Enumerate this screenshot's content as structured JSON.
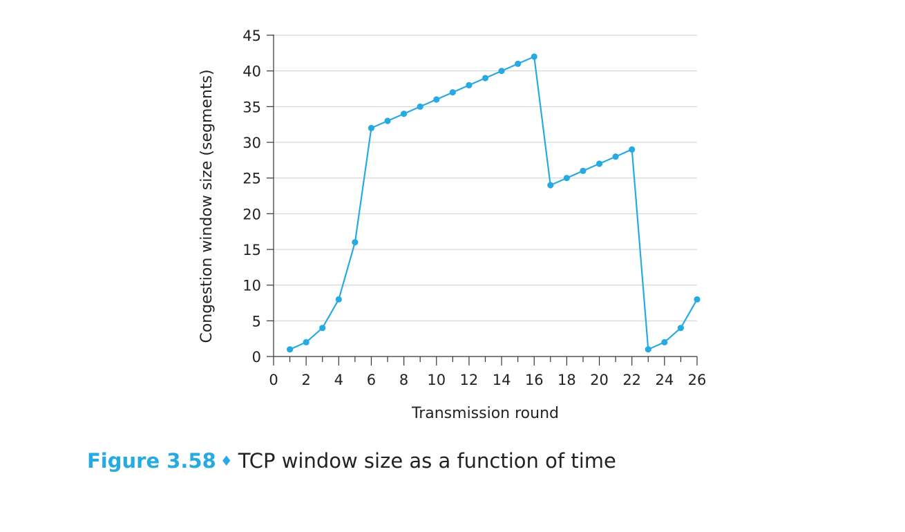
{
  "chart_data": {
    "type": "line",
    "xlabel": "Transmission round",
    "ylabel": "Congestion window size (segments)",
    "xlim": [
      0,
      26
    ],
    "ylim": [
      0,
      45
    ],
    "xticks": [
      0,
      2,
      4,
      6,
      8,
      10,
      12,
      14,
      16,
      18,
      20,
      22,
      24,
      26
    ],
    "yticks": [
      0,
      5,
      10,
      15,
      20,
      25,
      30,
      35,
      40,
      45
    ],
    "grid": true,
    "legend": "none",
    "series": [
      {
        "color": "#27aae1",
        "x": [
          1,
          2,
          3,
          4,
          5,
          6,
          7,
          8,
          9,
          10,
          11,
          12,
          13,
          14,
          15,
          16,
          17,
          18,
          19,
          20,
          21,
          22,
          23,
          24,
          25,
          26
        ],
        "values": [
          1,
          2,
          4,
          8,
          16,
          32,
          33,
          34,
          35,
          36,
          37,
          38,
          39,
          40,
          41,
          42,
          24,
          25,
          26,
          27,
          28,
          29,
          1,
          2,
          4,
          8
        ]
      }
    ]
  },
  "caption": {
    "figure_number": "Figure 3.58",
    "separator": "♦",
    "text": "TCP window size as a function of time"
  }
}
